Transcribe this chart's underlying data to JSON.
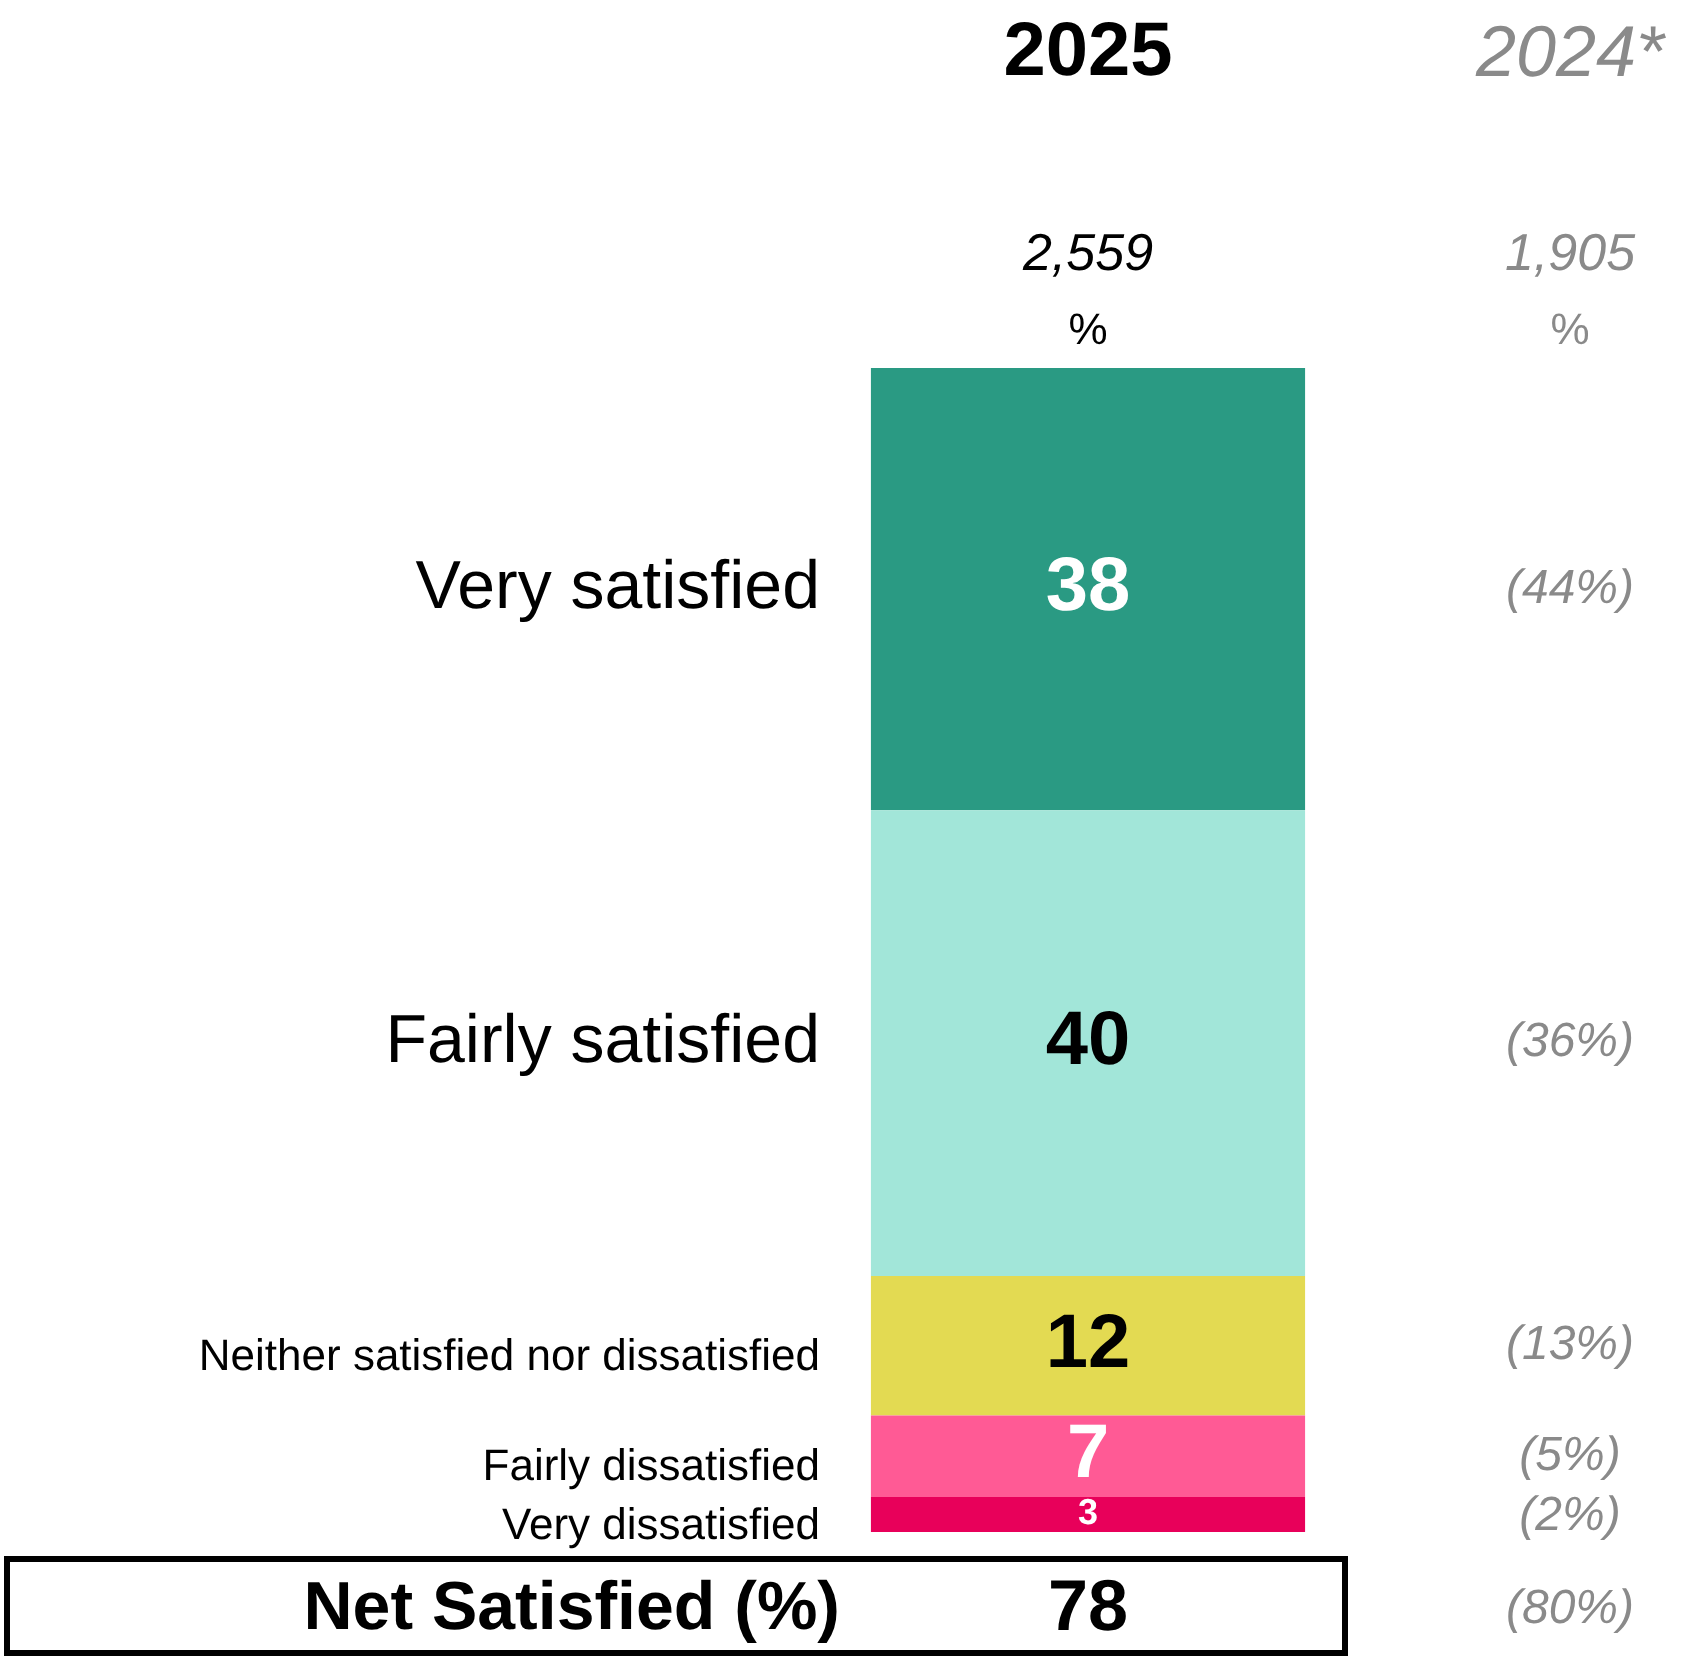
{
  "chart_data": {
    "type": "bar",
    "stacked": true,
    "categories": [
      "2025"
    ],
    "series": [
      {
        "name": "Very dissatisfied",
        "color": "#e8005a",
        "values": [
          3
        ]
      },
      {
        "name": "Fairly dissatisfied",
        "color": "#ff5a95",
        "values": [
          7
        ]
      },
      {
        "name": "Neither satisfied nor dissatisfied",
        "color": "#e3da52",
        "values": [
          12
        ]
      },
      {
        "name": "Fairly satisfied",
        "color": "#a2e6d9",
        "values": [
          40
        ]
      },
      {
        "name": "Very satisfied",
        "color": "#2a9a83",
        "values": [
          38
        ]
      }
    ],
    "data_labels": true,
    "tick_labels": "x",
    "grid": false,
    "legend": false,
    "annotations": [
      "2024*",
      "2,559",
      "%",
      "1,905",
      "%",
      "(44%)",
      "(36%)",
      "(13%)",
      "(5%)",
      "(2%)",
      "Net Satisfied (%)",
      "78",
      "(80%)"
    ]
  }
}
